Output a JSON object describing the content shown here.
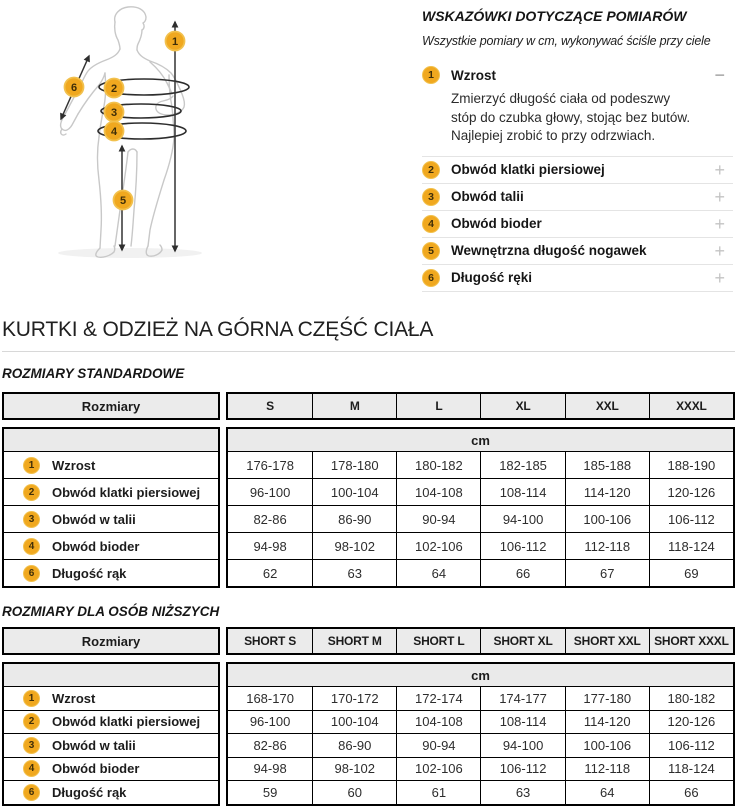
{
  "colors": {
    "badge_fill": "#F0A81F",
    "badge_ring": "#F2C14D",
    "badge_text": "#3F2E08",
    "table_border": "#000000",
    "table_header_bg": "#EBEBEB",
    "separator": "#E4E4E4",
    "plus_icon": "#C4C4C4",
    "minus_icon": "#979797"
  },
  "measure_tips": {
    "title": "WSKAZÓWKI DOTYCZĄCE POMIARÓW",
    "subtitle": "Wszystkie pomiary w cm, wykonywać ściśle przy ciele",
    "items": [
      {
        "number": "1",
        "label": "Wzrost",
        "expanded": true,
        "toggle_icon": "minus-icon",
        "toggle_glyph": "−",
        "description": "Zmierzyć długość ciała od podeszwy stóp do czubka głowy, stojąc bez butów. Najlepiej zrobić to przy odrzwiach."
      },
      {
        "number": "2",
        "label": "Obwód klatki piersiowej",
        "expanded": false,
        "toggle_icon": "plus-icon",
        "toggle_glyph": "+"
      },
      {
        "number": "3",
        "label": "Obwód talii",
        "expanded": false,
        "toggle_icon": "plus-icon",
        "toggle_glyph": "+"
      },
      {
        "number": "4",
        "label": "Obwód bioder",
        "expanded": false,
        "toggle_icon": "plus-icon",
        "toggle_glyph": "+"
      },
      {
        "number": "5",
        "label": "Wewnętrzna długość nogawek",
        "expanded": false,
        "toggle_icon": "plus-icon",
        "toggle_glyph": "+"
      },
      {
        "number": "6",
        "label": "Długość ręki",
        "expanded": false,
        "toggle_icon": "plus-icon",
        "toggle_glyph": "+"
      }
    ]
  },
  "diagram": {
    "figure": "male-body-outline",
    "badges": [
      "1",
      "2",
      "3",
      "4",
      "5",
      "6"
    ]
  },
  "section_title": "KURTKI & ODZIEŻ NA GÓRNA CZĘŚĆ CIAŁA",
  "tables": [
    {
      "title": "ROZMIARY STANDARDOWE",
      "label_header": "Rozmiary",
      "columns": [
        "S",
        "M",
        "L",
        "XL",
        "XXL",
        "XXXL"
      ],
      "unit_row": "cm",
      "rows": [
        {
          "number": "1",
          "label": "Wzrost",
          "values": [
            "176-178",
            "178-180",
            "180-182",
            "182-185",
            "185-188",
            "188-190"
          ]
        },
        {
          "number": "2",
          "label": "Obwód klatki piersiowej",
          "values": [
            "96-100",
            "100-104",
            "104-108",
            "108-114",
            "114-120",
            "120-126"
          ]
        },
        {
          "number": "3",
          "label": "Obwód w talii",
          "values": [
            "82-86",
            "86-90",
            "90-94",
            "94-100",
            "100-106",
            "106-112"
          ]
        },
        {
          "number": "4",
          "label": "Obwód bioder",
          "values": [
            "94-98",
            "98-102",
            "102-106",
            "106-112",
            "112-118",
            "118-124"
          ]
        },
        {
          "number": "6",
          "label": "Długość rąk",
          "values": [
            "62",
            "63",
            "64",
            "66",
            "67",
            "69"
          ]
        }
      ]
    },
    {
      "title": "ROZMIARY DLA OSÓB NIŻSZYCH",
      "label_header": "Rozmiary",
      "columns": [
        "SHORT S",
        "SHORT M",
        "SHORT L",
        "SHORT XL",
        "SHORT XXL",
        "SHORT XXXL"
      ],
      "unit_row": "cm",
      "rows": [
        {
          "number": "1",
          "label": "Wzrost",
          "values": [
            "168-170",
            "170-172",
            "172-174",
            "174-177",
            "177-180",
            "180-182"
          ]
        },
        {
          "number": "2",
          "label": "Obwód klatki piersiowej",
          "values": [
            "96-100",
            "100-104",
            "104-108",
            "108-114",
            "114-120",
            "120-126"
          ]
        },
        {
          "number": "3",
          "label": "Obwód w talii",
          "values": [
            "82-86",
            "86-90",
            "90-94",
            "94-100",
            "100-106",
            "106-112"
          ]
        },
        {
          "number": "4",
          "label": "Obwód bioder",
          "values": [
            "94-98",
            "98-102",
            "102-106",
            "106-112",
            "112-118",
            "118-124"
          ]
        },
        {
          "number": "6",
          "label": "Długość rąk",
          "values": [
            "59",
            "60",
            "61",
            "63",
            "64",
            "66"
          ]
        }
      ]
    }
  ]
}
